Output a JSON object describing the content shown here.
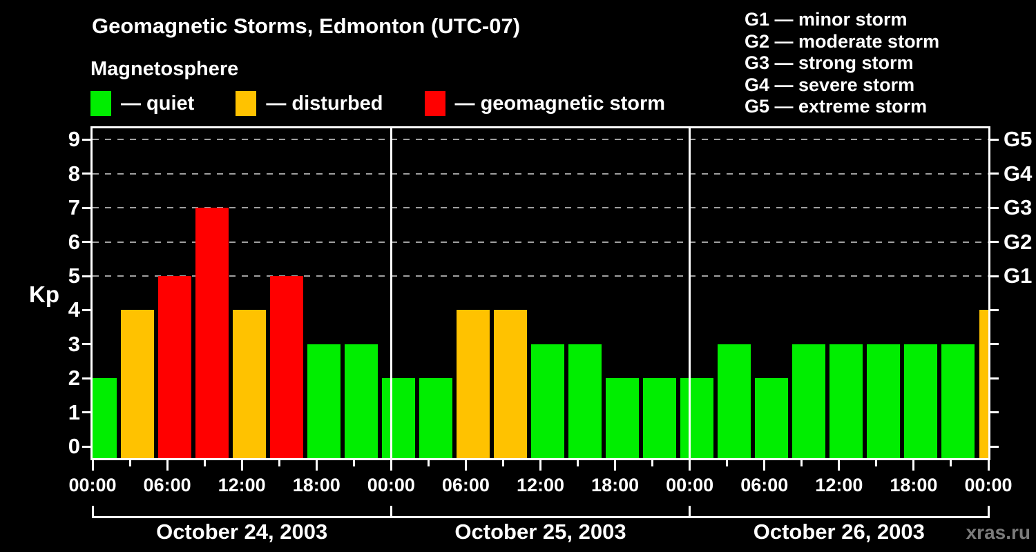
{
  "header": {
    "title": "Geomagnetic Storms, Edmonton (UTC-07)",
    "subtitle": "Magnetosphere"
  },
  "legend": [
    {
      "key": "quiet",
      "label": "— quiet",
      "color": "#00ee00"
    },
    {
      "key": "disturbed",
      "label": "— disturbed",
      "color": "#ffc200"
    },
    {
      "key": "storm",
      "label": "— geomagnetic storm",
      "color": "#ff0000"
    }
  ],
  "g_scale_legend": [
    "G1 — minor storm",
    "G2 — moderate storm",
    "G3 — strong storm",
    "G4 — severe storm",
    "G5 — extreme storm"
  ],
  "watermark": "xras.ru",
  "chart_data": {
    "type": "bar",
    "ylabel": "Kp",
    "ylim": [
      0,
      9
    ],
    "yticks": [
      0,
      1,
      2,
      3,
      4,
      5,
      6,
      7,
      8,
      9
    ],
    "gridlines_at": [
      5,
      6,
      7,
      8,
      9
    ],
    "right_axis": [
      {
        "kp": 5,
        "label": "G1"
      },
      {
        "kp": 6,
        "label": "G2"
      },
      {
        "kp": 7,
        "label": "G3"
      },
      {
        "kp": 8,
        "label": "G4"
      },
      {
        "kp": 9,
        "label": "G5"
      }
    ],
    "x_time_labels": [
      "00:00",
      "06:00",
      "12:00",
      "18:00",
      "00:00",
      "06:00",
      "12:00",
      "18:00",
      "00:00",
      "06:00",
      "12:00",
      "18:00",
      "00:00"
    ],
    "bar_interval_hours": 3,
    "days": [
      {
        "label": "October 24, 2003",
        "kp": [
          2,
          4,
          5,
          7,
          4,
          5,
          3,
          3
        ]
      },
      {
        "label": "October 25, 2003",
        "kp": [
          2,
          2,
          4,
          4,
          3,
          3,
          2,
          2
        ]
      },
      {
        "label": "October 26, 2003",
        "kp": [
          2,
          3,
          2,
          3,
          3,
          3,
          3,
          3
        ]
      }
    ],
    "trailing_bar_kp": 4,
    "bar_colors": {
      "quiet": "#00ee00",
      "disturbed": "#ffc200",
      "storm": "#ff0000"
    },
    "color_rules": {
      "quiet": "Kp <= 3",
      "disturbed": "Kp = 4",
      "storm": "Kp >= 5"
    },
    "legend_position": "top",
    "grid": "dashed, storm levels only"
  }
}
